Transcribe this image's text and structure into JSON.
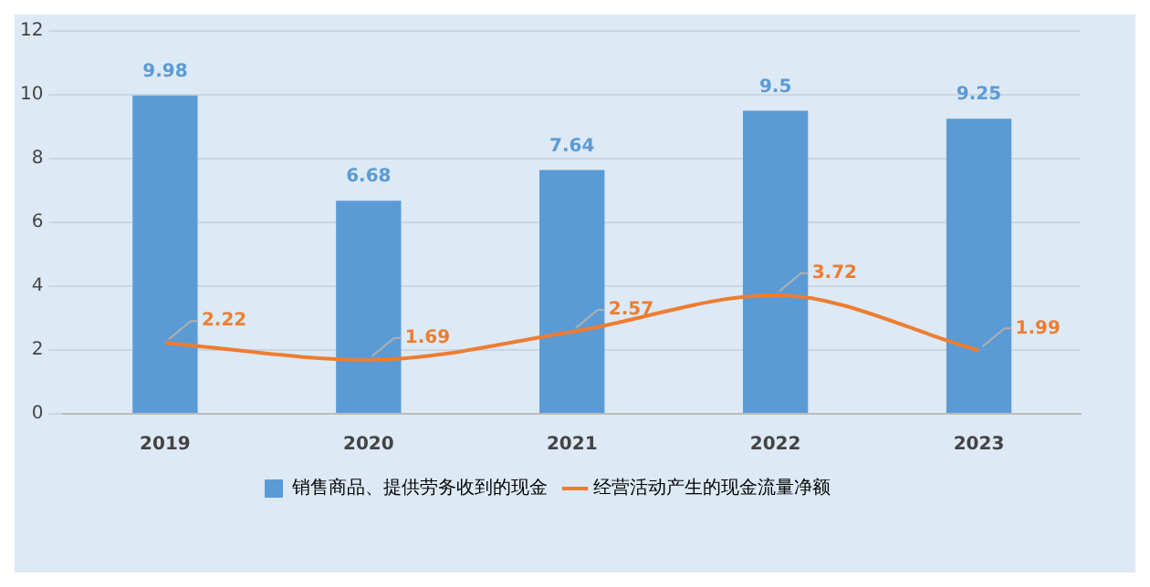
{
  "chart_data": {
    "type": "bar",
    "categories": [
      "2019",
      "2020",
      "2021",
      "2022",
      "2023"
    ],
    "series": [
      {
        "name": "销售商品、提供劳务收到的现金",
        "color": "#5b9bd5",
        "values": [
          9.98,
          6.68,
          7.64,
          9.5,
          9.25
        ]
      },
      {
        "name": "经营活动产生的现金流量净额",
        "type": "line",
        "color": "#ed7d31",
        "values": [
          2.22,
          1.69,
          2.57,
          3.72,
          1.99
        ]
      }
    ],
    "ylim": [
      0,
      12
    ],
    "yticks": [
      0,
      2,
      4,
      6,
      8,
      10,
      12
    ],
    "grid": "y",
    "legend": "bottom",
    "data_labels": true,
    "marker": "none"
  }
}
